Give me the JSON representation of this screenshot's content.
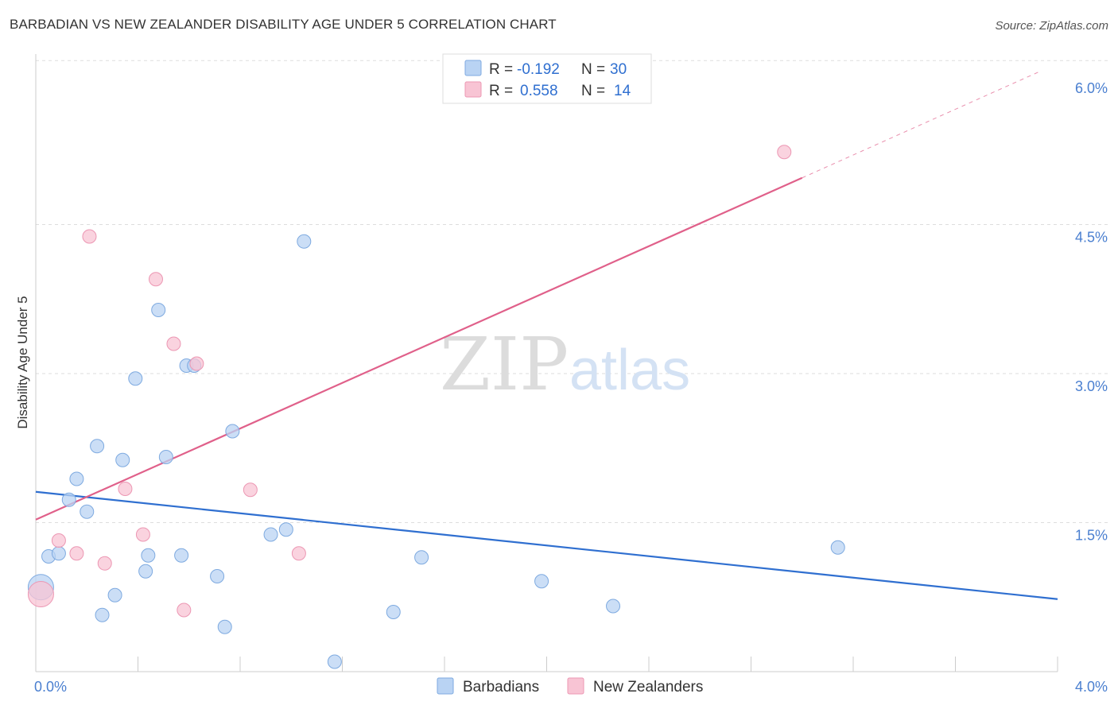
{
  "title": "BARBADIAN VS NEW ZEALANDER DISABILITY AGE UNDER 5 CORRELATION CHART",
  "source": "Source: ZipAtlas.com",
  "watermark": {
    "part1": "ZIP",
    "part2": "atlas"
  },
  "colors": {
    "blue_fill": "#b9d3f3",
    "blue_stroke": "#7eaae0",
    "blue_line": "#2f6fd0",
    "pink_fill": "#f8c4d4",
    "pink_stroke": "#ec97b3",
    "pink_line": "#e0608a",
    "grid": "#dddddd",
    "tick_text": "#4a7fd0"
  },
  "legend": {
    "rows": [
      {
        "r_label": "R =",
        "r_value": "-0.192",
        "n_label": "N =",
        "n_value": "30"
      },
      {
        "r_label": "R =",
        "r_value": "0.558",
        "n_label": "N =",
        "n_value": "14"
      }
    ]
  },
  "bottom_legend": {
    "series1": "Barbadians",
    "series2": "New Zealanders"
  },
  "chart_data": {
    "type": "scatter",
    "title": "BARBADIAN VS NEW ZEALANDER DISABILITY AGE UNDER 5 CORRELATION CHART",
    "xlabel": "",
    "ylabel": "Disability Age Under 5",
    "xlim": [
      0,
      4
    ],
    "ylim": [
      0,
      6.2
    ],
    "x_tick_labels": [
      {
        "value": 0,
        "label": "0.0%"
      },
      {
        "value": 4,
        "label": "4.0%"
      }
    ],
    "y_tick_labels": [
      {
        "value": 1.5,
        "label": "1.5%"
      },
      {
        "value": 3.0,
        "label": "3.0%"
      },
      {
        "value": 4.5,
        "label": "4.5%"
      },
      {
        "value": 6.0,
        "label": "6.0%"
      }
    ],
    "y_gridlines": [
      1.5,
      3.0,
      4.5,
      6.15
    ],
    "x_minor_ticks": [
      0.4,
      0.8,
      1.2,
      1.6,
      2.0,
      2.4,
      2.8,
      3.2,
      3.6,
      4.0
    ],
    "series": [
      {
        "name": "Barbadians",
        "color": "blue",
        "points": [
          {
            "x": 0.02,
            "y": 0.85,
            "big": true
          },
          {
            "x": 0.05,
            "y": 1.16
          },
          {
            "x": 0.09,
            "y": 1.19
          },
          {
            "x": 0.13,
            "y": 1.73
          },
          {
            "x": 0.16,
            "y": 1.94
          },
          {
            "x": 0.2,
            "y": 1.61
          },
          {
            "x": 0.24,
            "y": 2.27
          },
          {
            "x": 0.26,
            "y": 0.57
          },
          {
            "x": 0.31,
            "y": 0.77
          },
          {
            "x": 0.34,
            "y": 2.13
          },
          {
            "x": 0.39,
            "y": 2.95
          },
          {
            "x": 0.43,
            "y": 1.01
          },
          {
            "x": 0.44,
            "y": 1.17
          },
          {
            "x": 0.48,
            "y": 3.64
          },
          {
            "x": 0.51,
            "y": 2.16
          },
          {
            "x": 0.57,
            "y": 1.17
          },
          {
            "x": 0.59,
            "y": 3.08
          },
          {
            "x": 0.62,
            "y": 3.08
          },
          {
            "x": 0.71,
            "y": 0.96
          },
          {
            "x": 0.74,
            "y": 0.45
          },
          {
            "x": 0.77,
            "y": 2.42
          },
          {
            "x": 0.92,
            "y": 1.38
          },
          {
            "x": 0.98,
            "y": 1.43
          },
          {
            "x": 1.05,
            "y": 4.33
          },
          {
            "x": 1.17,
            "y": 0.1
          },
          {
            "x": 1.4,
            "y": 0.6
          },
          {
            "x": 1.51,
            "y": 1.15
          },
          {
            "x": 1.98,
            "y": 0.91
          },
          {
            "x": 2.26,
            "y": 0.66
          },
          {
            "x": 3.14,
            "y": 1.25
          }
        ],
        "trend": {
          "x0": 0,
          "y0": 1.81,
          "x1": 4.0,
          "y1": 0.73
        }
      },
      {
        "name": "New Zealanders",
        "color": "pink",
        "points": [
          {
            "x": 0.02,
            "y": 0.78,
            "big": true
          },
          {
            "x": 0.09,
            "y": 1.32
          },
          {
            "x": 0.16,
            "y": 1.19
          },
          {
            "x": 0.21,
            "y": 4.38
          },
          {
            "x": 0.27,
            "y": 1.09
          },
          {
            "x": 0.35,
            "y": 1.84
          },
          {
            "x": 0.42,
            "y": 1.38
          },
          {
            "x": 0.47,
            "y": 3.95
          },
          {
            "x": 0.54,
            "y": 3.3
          },
          {
            "x": 0.58,
            "y": 0.62
          },
          {
            "x": 0.63,
            "y": 3.1
          },
          {
            "x": 0.84,
            "y": 1.83
          },
          {
            "x": 1.03,
            "y": 1.19
          },
          {
            "x": 2.93,
            "y": 5.23
          }
        ],
        "trend": {
          "x0": 0,
          "y0": 1.53,
          "x1": 3.0,
          "y1": 4.97,
          "dash_to_x": 3.93,
          "dash_to_y": 6.04
        }
      }
    ]
  }
}
